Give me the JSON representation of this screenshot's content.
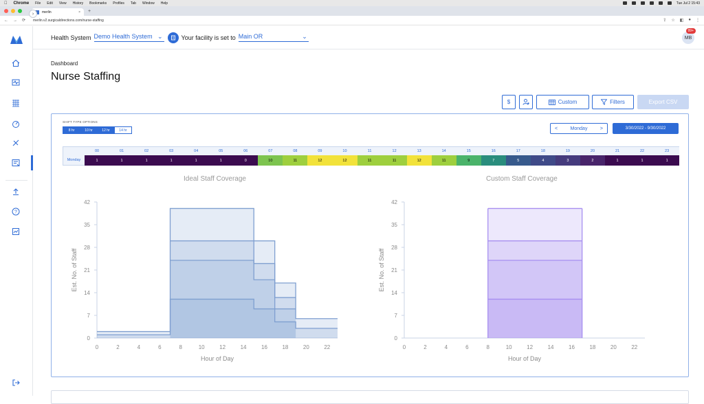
{
  "macos": {
    "menus": [
      "Chrome",
      "File",
      "Edit",
      "View",
      "History",
      "Bookmarks",
      "Profiles",
      "Tab",
      "Window",
      "Help"
    ],
    "clock": "Tue Jul 2  15:43"
  },
  "browser": {
    "tab_title": "merlin",
    "url": "merlin.v2.surgicaldirections.com/nurse-staffing"
  },
  "header": {
    "health_system_label": "Health System",
    "health_system_value": "Demo Health System",
    "facility_label": "Your facility is set to",
    "facility_value": "Main OR",
    "avatar_initials": "MB",
    "notification_count": "99+"
  },
  "page": {
    "breadcrumb": "Dashboard",
    "title": "Nurse Staffing"
  },
  "toolbar": {
    "dollar": "$",
    "custom_label": "Custom",
    "filters_label": "Filters",
    "export_label": "Export CSV"
  },
  "shift": {
    "label": "SHIFT TYPE OPTIONS",
    "options": [
      "8 hr",
      "10 hr",
      "12 hr",
      "14 hr"
    ],
    "selected": [
      true,
      true,
      true,
      false
    ]
  },
  "day_nav": {
    "prev": "<",
    "day": "Monday",
    "next": ">",
    "date_range": "3/30/2022 - 9/30/2022"
  },
  "heatmap": {
    "row_label": "Monday",
    "hours": [
      "00",
      "01",
      "02",
      "03",
      "04",
      "05",
      "06",
      "07",
      "08",
      "09",
      "10",
      "11",
      "12",
      "13",
      "14",
      "15",
      "16",
      "17",
      "18",
      "19",
      "20",
      "21",
      "22",
      "23"
    ],
    "values": [
      "1",
      "1",
      "1",
      "1",
      "1",
      "1",
      "0",
      "10",
      "11",
      "12",
      "12",
      "11",
      "11",
      "12",
      "11",
      "9",
      "7",
      "5",
      "4",
      "3",
      "2",
      "1",
      "1",
      "1"
    ],
    "colors": [
      "#3b0b4f",
      "#3b0b4f",
      "#3b0b4f",
      "#3b0b4f",
      "#3b0b4f",
      "#3b0b4f",
      "#3b0b4f",
      "#7dc44f",
      "#9ecf3e",
      "#f2e23a",
      "#f2e23a",
      "#9ecf3e",
      "#9ecf3e",
      "#f2e23a",
      "#9ecf3e",
      "#4ab36a",
      "#2a8d7d",
      "#375a8c",
      "#3f4a88",
      "#453b7d",
      "#48246a",
      "#3b0b4f",
      "#3b0b4f",
      "#3b0b4f"
    ],
    "text_colors": [
      "#fff",
      "#fff",
      "#fff",
      "#fff",
      "#fff",
      "#fff",
      "#fff",
      "#000",
      "#000",
      "#000",
      "#000",
      "#000",
      "#000",
      "#000",
      "#000",
      "#000",
      "#fff",
      "#fff",
      "#fff",
      "#fff",
      "#fff",
      "#fff",
      "#fff",
      "#fff"
    ]
  },
  "chart_data": [
    {
      "type": "area",
      "title": "Ideal Staff Coverage",
      "xlabel": "Hour of Day",
      "ylabel": "Est. No. of Staff",
      "xlim": [
        0,
        23
      ],
      "ylim": [
        0,
        42
      ],
      "xticks": [
        0,
        2,
        4,
        6,
        8,
        10,
        12,
        14,
        16,
        18,
        20,
        22
      ],
      "yticks": [
        0,
        7,
        14,
        21,
        28,
        35,
        42
      ],
      "color": "#7f9fd0",
      "series": [
        {
          "x": [
            0,
            7,
            7,
            15,
            15,
            17,
            17,
            19,
            19,
            23
          ],
          "y": [
            2,
            2,
            40,
            40,
            30,
            30,
            17,
            17,
            6,
            6
          ]
        },
        {
          "x": [
            7,
            15,
            15,
            17,
            17,
            19
          ],
          "y": [
            30,
            30,
            23,
            23,
            12.5,
            12.5
          ]
        },
        {
          "x": [
            7,
            15,
            15,
            17,
            17,
            19
          ],
          "y": [
            24,
            24,
            18,
            18,
            9,
            9
          ]
        },
        {
          "x": [
            0,
            7,
            7,
            15,
            15,
            17,
            17,
            19,
            19,
            23
          ],
          "y": [
            1,
            1,
            12,
            12,
            9,
            9,
            5,
            5,
            3,
            3
          ]
        }
      ]
    },
    {
      "type": "area",
      "title": "Custom Staff Coverage",
      "xlabel": "Hour of Day",
      "ylabel": "Est. No. of Staff",
      "xlim": [
        0,
        23
      ],
      "ylim": [
        0,
        42
      ],
      "xticks": [
        0,
        2,
        4,
        6,
        8,
        10,
        12,
        14,
        16,
        18,
        20,
        22
      ],
      "yticks": [
        0,
        7,
        14,
        21,
        28,
        35,
        42
      ],
      "color": "#a78ef0",
      "series": [
        {
          "x": [
            8,
            17
          ],
          "y": [
            40,
            40
          ]
        },
        {
          "x": [
            8,
            17
          ],
          "y": [
            30,
            30
          ]
        },
        {
          "x": [
            8,
            17
          ],
          "y": [
            24,
            24
          ]
        },
        {
          "x": [
            8,
            17
          ],
          "y": [
            12,
            12
          ]
        }
      ]
    }
  ]
}
